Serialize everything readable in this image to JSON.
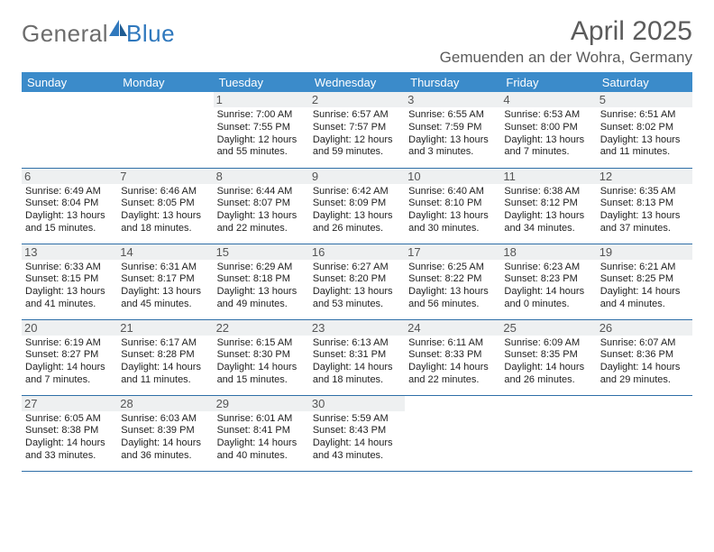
{
  "logo": {
    "general": "General",
    "blue": "Blue"
  },
  "title": "April 2025",
  "location": "Gemuenden an der Wohra, Germany",
  "colors": {
    "header_bar": "#3b8bca",
    "row_divider": "#2f6fa8",
    "daynum_bg": "#eef0f1",
    "title_color": "#5b5b5b",
    "logo_gray": "#6d6d6d",
    "logo_blue": "#2f78bd"
  },
  "weekdays": [
    "Sunday",
    "Monday",
    "Tuesday",
    "Wednesday",
    "Thursday",
    "Friday",
    "Saturday"
  ],
  "weeks": [
    [
      null,
      null,
      {
        "n": "1",
        "sr": "Sunrise: 7:00 AM",
        "ss": "Sunset: 7:55 PM",
        "d1": "Daylight: 12 hours",
        "d2": "and 55 minutes."
      },
      {
        "n": "2",
        "sr": "Sunrise: 6:57 AM",
        "ss": "Sunset: 7:57 PM",
        "d1": "Daylight: 12 hours",
        "d2": "and 59 minutes."
      },
      {
        "n": "3",
        "sr": "Sunrise: 6:55 AM",
        "ss": "Sunset: 7:59 PM",
        "d1": "Daylight: 13 hours",
        "d2": "and 3 minutes."
      },
      {
        "n": "4",
        "sr": "Sunrise: 6:53 AM",
        "ss": "Sunset: 8:00 PM",
        "d1": "Daylight: 13 hours",
        "d2": "and 7 minutes."
      },
      {
        "n": "5",
        "sr": "Sunrise: 6:51 AM",
        "ss": "Sunset: 8:02 PM",
        "d1": "Daylight: 13 hours",
        "d2": "and 11 minutes."
      }
    ],
    [
      {
        "n": "6",
        "sr": "Sunrise: 6:49 AM",
        "ss": "Sunset: 8:04 PM",
        "d1": "Daylight: 13 hours",
        "d2": "and 15 minutes."
      },
      {
        "n": "7",
        "sr": "Sunrise: 6:46 AM",
        "ss": "Sunset: 8:05 PM",
        "d1": "Daylight: 13 hours",
        "d2": "and 18 minutes."
      },
      {
        "n": "8",
        "sr": "Sunrise: 6:44 AM",
        "ss": "Sunset: 8:07 PM",
        "d1": "Daylight: 13 hours",
        "d2": "and 22 minutes."
      },
      {
        "n": "9",
        "sr": "Sunrise: 6:42 AM",
        "ss": "Sunset: 8:09 PM",
        "d1": "Daylight: 13 hours",
        "d2": "and 26 minutes."
      },
      {
        "n": "10",
        "sr": "Sunrise: 6:40 AM",
        "ss": "Sunset: 8:10 PM",
        "d1": "Daylight: 13 hours",
        "d2": "and 30 minutes."
      },
      {
        "n": "11",
        "sr": "Sunrise: 6:38 AM",
        "ss": "Sunset: 8:12 PM",
        "d1": "Daylight: 13 hours",
        "d2": "and 34 minutes."
      },
      {
        "n": "12",
        "sr": "Sunrise: 6:35 AM",
        "ss": "Sunset: 8:13 PM",
        "d1": "Daylight: 13 hours",
        "d2": "and 37 minutes."
      }
    ],
    [
      {
        "n": "13",
        "sr": "Sunrise: 6:33 AM",
        "ss": "Sunset: 8:15 PM",
        "d1": "Daylight: 13 hours",
        "d2": "and 41 minutes."
      },
      {
        "n": "14",
        "sr": "Sunrise: 6:31 AM",
        "ss": "Sunset: 8:17 PM",
        "d1": "Daylight: 13 hours",
        "d2": "and 45 minutes."
      },
      {
        "n": "15",
        "sr": "Sunrise: 6:29 AM",
        "ss": "Sunset: 8:18 PM",
        "d1": "Daylight: 13 hours",
        "d2": "and 49 minutes."
      },
      {
        "n": "16",
        "sr": "Sunrise: 6:27 AM",
        "ss": "Sunset: 8:20 PM",
        "d1": "Daylight: 13 hours",
        "d2": "and 53 minutes."
      },
      {
        "n": "17",
        "sr": "Sunrise: 6:25 AM",
        "ss": "Sunset: 8:22 PM",
        "d1": "Daylight: 13 hours",
        "d2": "and 56 minutes."
      },
      {
        "n": "18",
        "sr": "Sunrise: 6:23 AM",
        "ss": "Sunset: 8:23 PM",
        "d1": "Daylight: 14 hours",
        "d2": "and 0 minutes."
      },
      {
        "n": "19",
        "sr": "Sunrise: 6:21 AM",
        "ss": "Sunset: 8:25 PM",
        "d1": "Daylight: 14 hours",
        "d2": "and 4 minutes."
      }
    ],
    [
      {
        "n": "20",
        "sr": "Sunrise: 6:19 AM",
        "ss": "Sunset: 8:27 PM",
        "d1": "Daylight: 14 hours",
        "d2": "and 7 minutes."
      },
      {
        "n": "21",
        "sr": "Sunrise: 6:17 AM",
        "ss": "Sunset: 8:28 PM",
        "d1": "Daylight: 14 hours",
        "d2": "and 11 minutes."
      },
      {
        "n": "22",
        "sr": "Sunrise: 6:15 AM",
        "ss": "Sunset: 8:30 PM",
        "d1": "Daylight: 14 hours",
        "d2": "and 15 minutes."
      },
      {
        "n": "23",
        "sr": "Sunrise: 6:13 AM",
        "ss": "Sunset: 8:31 PM",
        "d1": "Daylight: 14 hours",
        "d2": "and 18 minutes."
      },
      {
        "n": "24",
        "sr": "Sunrise: 6:11 AM",
        "ss": "Sunset: 8:33 PM",
        "d1": "Daylight: 14 hours",
        "d2": "and 22 minutes."
      },
      {
        "n": "25",
        "sr": "Sunrise: 6:09 AM",
        "ss": "Sunset: 8:35 PM",
        "d1": "Daylight: 14 hours",
        "d2": "and 26 minutes."
      },
      {
        "n": "26",
        "sr": "Sunrise: 6:07 AM",
        "ss": "Sunset: 8:36 PM",
        "d1": "Daylight: 14 hours",
        "d2": "and 29 minutes."
      }
    ],
    [
      {
        "n": "27",
        "sr": "Sunrise: 6:05 AM",
        "ss": "Sunset: 8:38 PM",
        "d1": "Daylight: 14 hours",
        "d2": "and 33 minutes."
      },
      {
        "n": "28",
        "sr": "Sunrise: 6:03 AM",
        "ss": "Sunset: 8:39 PM",
        "d1": "Daylight: 14 hours",
        "d2": "and 36 minutes."
      },
      {
        "n": "29",
        "sr": "Sunrise: 6:01 AM",
        "ss": "Sunset: 8:41 PM",
        "d1": "Daylight: 14 hours",
        "d2": "and 40 minutes."
      },
      {
        "n": "30",
        "sr": "Sunrise: 5:59 AM",
        "ss": "Sunset: 8:43 PM",
        "d1": "Daylight: 14 hours",
        "d2": "and 43 minutes."
      },
      null,
      null,
      null
    ]
  ]
}
